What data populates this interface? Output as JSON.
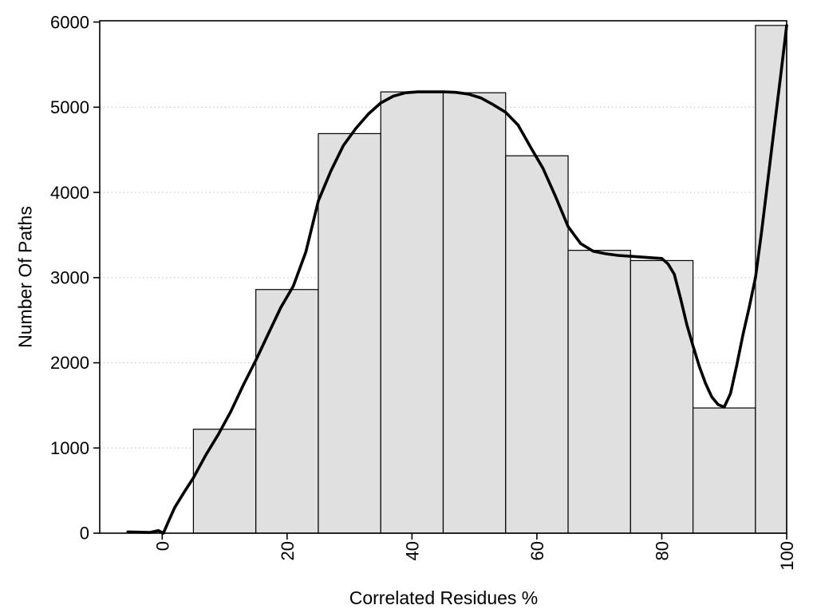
{
  "chart_data": {
    "type": "bar",
    "subtype": "histogram-with-density-curve",
    "title": "",
    "xlabel": "Correlated Residues %",
    "ylabel": "Number Of Paths",
    "xlim": [
      -10,
      100
    ],
    "ylim": [
      0,
      6015
    ],
    "x_ticks": [
      0,
      20,
      40,
      60,
      80,
      100
    ],
    "y_ticks": [
      0,
      1000,
      2000,
      3000,
      4000,
      5000,
      6000
    ],
    "grid": {
      "horizontal_at": [
        1000,
        2000,
        3000,
        4000,
        5000
      ],
      "style": "dotted",
      "color": "#c6c6c6"
    },
    "legend": "none",
    "colors": {
      "bar_fill": "#e0e0e0",
      "bar_border": "#000000",
      "curve": "#000000",
      "axis": "#000000",
      "text": "#000000",
      "background": "#ffffff"
    },
    "bars": [
      {
        "from": 5,
        "to": 15,
        "count": 1220
      },
      {
        "from": 15,
        "to": 25,
        "count": 2860
      },
      {
        "from": 25,
        "to": 35,
        "count": 4690
      },
      {
        "from": 35,
        "to": 45,
        "count": 5180
      },
      {
        "from": 45,
        "to": 55,
        "count": 5170
      },
      {
        "from": 55,
        "to": 65,
        "count": 4430
      },
      {
        "from": 65,
        "to": 75,
        "count": 3320
      },
      {
        "from": 75,
        "to": 85,
        "count": 3200
      },
      {
        "from": 85,
        "to": 95,
        "count": 1470
      },
      {
        "from": 95,
        "to": 100,
        "count": 5960
      }
    ],
    "density_curve_points": [
      [
        -5.5,
        15
      ],
      [
        -4,
        12
      ],
      [
        -2,
        8
      ],
      [
        -0.6,
        30
      ],
      [
        0.2,
        0
      ],
      [
        0.9,
        120
      ],
      [
        2,
        300
      ],
      [
        3.5,
        480
      ],
      [
        5,
        650
      ],
      [
        7,
        920
      ],
      [
        9,
        1160
      ],
      [
        11,
        1430
      ],
      [
        13,
        1740
      ],
      [
        15,
        2030
      ],
      [
        17,
        2340
      ],
      [
        19,
        2650
      ],
      [
        21,
        2900
      ],
      [
        23,
        3300
      ],
      [
        25,
        3900
      ],
      [
        27,
        4250
      ],
      [
        29,
        4550
      ],
      [
        31,
        4750
      ],
      [
        33,
        4920
      ],
      [
        35,
        5050
      ],
      [
        37,
        5130
      ],
      [
        39,
        5170
      ],
      [
        41,
        5180
      ],
      [
        43,
        5180
      ],
      [
        45,
        5180
      ],
      [
        47,
        5175
      ],
      [
        49,
        5155
      ],
      [
        51,
        5110
      ],
      [
        53,
        5030
      ],
      [
        55,
        4940
      ],
      [
        57,
        4790
      ],
      [
        59,
        4530
      ],
      [
        61,
        4280
      ],
      [
        63,
        3950
      ],
      [
        65,
        3600
      ],
      [
        67,
        3400
      ],
      [
        69,
        3310
      ],
      [
        71,
        3280
      ],
      [
        73,
        3260
      ],
      [
        75,
        3250
      ],
      [
        77,
        3240
      ],
      [
        79,
        3230
      ],
      [
        80,
        3225
      ],
      [
        81,
        3160
      ],
      [
        82,
        3040
      ],
      [
        83,
        2760
      ],
      [
        84,
        2450
      ],
      [
        85,
        2200
      ],
      [
        86,
        1960
      ],
      [
        87,
        1760
      ],
      [
        88,
        1600
      ],
      [
        89,
        1510
      ],
      [
        90,
        1480
      ],
      [
        91,
        1640
      ],
      [
        92,
        1970
      ],
      [
        93,
        2330
      ],
      [
        94,
        2650
      ],
      [
        95,
        3000
      ],
      [
        96,
        3550
      ],
      [
        97,
        4150
      ],
      [
        98,
        4750
      ],
      [
        99,
        5350
      ],
      [
        100,
        5960
      ]
    ]
  }
}
